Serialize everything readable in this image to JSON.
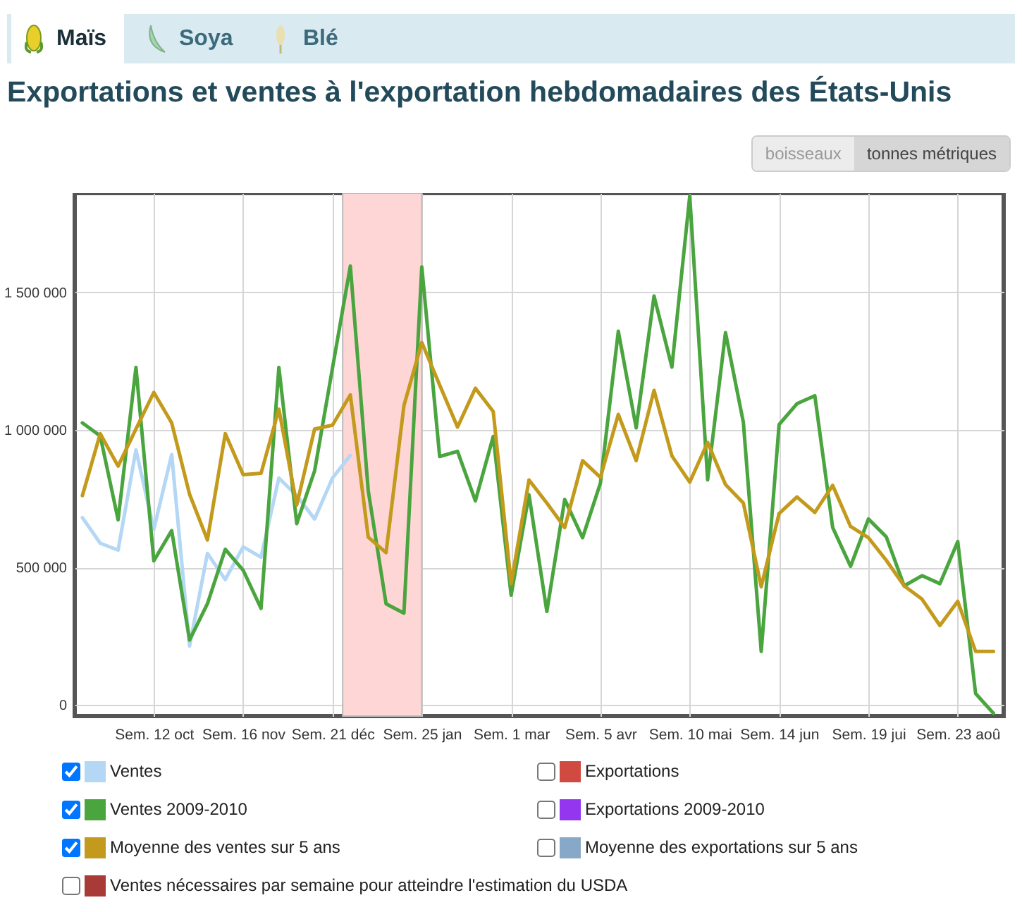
{
  "chart_data": {
    "type": "line",
    "title": "Exportations et ventes à l'exportation hebdomadaires des États-Unis",
    "annotations": [
      "Maïs",
      "Soya",
      "Blé",
      "boisseaux",
      "tonnes métriques"
    ],
    "x": [
      "2009-09-14",
      "2009-09-21",
      "2009-09-28",
      "2009-10-05",
      "2009-10-12",
      "2009-10-19",
      "2009-10-26",
      "2009-11-02",
      "2009-11-09",
      "2009-11-16",
      "2009-11-23",
      "2009-11-30",
      "2009-12-07",
      "2009-12-14",
      "2009-12-21",
      "2009-12-28",
      "2010-01-04",
      "2010-01-11",
      "2010-01-18",
      "2010-01-25",
      "2010-02-01",
      "2010-02-08",
      "2010-02-15",
      "2010-02-22",
      "2010-03-01",
      "2010-03-08",
      "2010-03-15",
      "2010-03-22",
      "2010-03-29",
      "2010-04-05",
      "2010-04-12",
      "2010-04-19",
      "2010-04-26",
      "2010-05-03",
      "2010-05-10",
      "2010-05-17",
      "2010-05-24",
      "2010-05-31",
      "2010-06-07",
      "2010-06-14",
      "2010-06-21",
      "2010-06-28",
      "2010-07-05",
      "2010-07-12",
      "2010-07-19",
      "2010-07-26",
      "2010-08-02",
      "2010-08-09",
      "2010-08-16",
      "2010-08-23",
      "2010-08-30",
      "2010-09-06"
    ],
    "xlim": [
      "2009-09-11",
      "2010-09-10"
    ],
    "xticks": [
      {
        "value": "2009-10-12",
        "label": "Sem. 12 oct"
      },
      {
        "value": "2009-11-16",
        "label": "Sem. 16 nov"
      },
      {
        "value": "2009-12-21",
        "label": "Sem. 21 déc"
      },
      {
        "value": "2010-01-25",
        "label": "Sem. 25 jan"
      },
      {
        "value": "2010-03-01",
        "label": "Sem. 1 mar"
      },
      {
        "value": "2010-04-05",
        "label": "Sem. 5 avr"
      },
      {
        "value": "2010-05-10",
        "label": "Sem. 10 mai"
      },
      {
        "value": "2010-06-14",
        "label": "Sem. 14 jun"
      },
      {
        "value": "2010-07-19",
        "label": "Sem. 19 jui"
      },
      {
        "value": "2010-08-23",
        "label": "Sem. 23 aoû"
      }
    ],
    "ylim": [
      -40000,
      1860000
    ],
    "yticks": [
      0,
      {
        "value": 500000,
        "label": "500 000"
      },
      {
        "value": 1000000,
        "label": "1 000 000"
      },
      {
        "value": 1500000,
        "label": "1 500 000"
      }
    ],
    "grid": true,
    "legend": "bottom",
    "bands": [
      {
        "axis": "x",
        "from": "2009-12-25",
        "to": "2010-01-25",
        "color": "#ffd6d6"
      }
    ],
    "series": [
      {
        "name": "Ventes",
        "color": "#b3d7f5",
        "values": [
          681000,
          588000,
          563000,
          927000,
          639000,
          910000,
          215000,
          551000,
          456000,
          575000,
          537000,
          825000,
          761000,
          676000,
          825000,
          907000,
          null,
          null,
          null,
          null,
          null,
          null,
          null,
          null,
          null,
          null,
          null,
          null,
          null,
          null,
          null,
          null,
          null,
          null,
          null,
          null,
          null,
          null,
          null,
          null,
          null,
          null,
          null,
          null,
          null,
          null,
          null,
          null,
          null,
          null,
          null,
          null
        ]
      },
      {
        "name": "Exportations",
        "color": "#d04a42",
        "values": [
          null,
          null,
          null,
          null,
          null,
          null,
          null,
          null,
          null,
          null,
          null,
          null,
          null,
          null,
          null,
          null,
          null,
          null,
          null,
          null,
          null,
          null,
          null,
          null,
          null,
          null,
          null,
          null,
          null,
          null,
          null,
          null,
          null,
          null,
          null,
          null,
          null,
          null,
          null,
          null,
          null,
          null,
          null,
          null,
          null,
          null,
          null,
          null,
          null,
          null,
          null,
          null
        ]
      },
      {
        "name": "Ventes 2009-2010",
        "color": "#4aa53f",
        "values": [
          1025000,
          978000,
          673000,
          1227000,
          524000,
          634000,
          236000,
          368000,
          566000,
          490000,
          351000,
          1227000,
          659000,
          851000,
          1224000,
          1595000,
          780000,
          368000,
          334000,
          1592000,
          903000,
          922000,
          742000,
          976000,
          399000,
          764000,
          340000,
          747000,
          608000,
          807000,
          1358000,
          1007000,
          1486000,
          1228000,
          1850000,
          818000,
          1353000,
          1027000,
          195000,
          1019000,
          1095000,
          1124000,
          645000,
          504000,
          676000,
          611000,
          433000,
          470000,
          441000,
          594000,
          42000,
          -30000
        ]
      },
      {
        "name": "Exportations 2009-2010",
        "color": "#9436f0",
        "values": [
          null,
          null,
          null,
          null,
          null,
          null,
          null,
          null,
          null,
          null,
          null,
          null,
          null,
          null,
          null,
          null,
          null,
          null,
          null,
          null,
          null,
          null,
          null,
          null,
          null,
          null,
          null,
          null,
          null,
          null,
          null,
          null,
          null,
          null,
          null,
          null,
          null,
          null,
          null,
          null,
          null,
          null,
          null,
          null,
          null,
          null,
          null,
          null,
          null,
          null,
          null,
          null
        ]
      },
      {
        "name": "Moyenne des ventes sur 5 ans",
        "color": "#c39a1b",
        "values": [
          761000,
          986000,
          868000,
          1003000,
          1136000,
          1025000,
          766000,
          600000,
          986000,
          837000,
          842000,
          1075000,
          727000,
          1003000,
          1017000,
          1127000,
          610000,
          554000,
          1088000,
          1317000,
          1163000,
          1010000,
          1151000,
          1066000,
          441000,
          818000,
          734000,
          645000,
          888000,
          827000,
          1056000,
          888000,
          1143000,
          905000,
          810000,
          954000,
          801000,
          734000,
          430000,
          696000,
          756000,
          700000,
          798000,
          649000,
          608000,
          526000,
          433000,
          385000,
          289000,
          377000,
          195000,
          195000
        ]
      },
      {
        "name": "Moyenne des exportations sur 5 ans",
        "color": "#88a8c8",
        "values": [
          null,
          null,
          null,
          null,
          null,
          null,
          null,
          null,
          null,
          null,
          null,
          null,
          null,
          null,
          null,
          null,
          null,
          null,
          null,
          null,
          null,
          null,
          null,
          null,
          null,
          null,
          null,
          null,
          null,
          null,
          null,
          null,
          null,
          null,
          null,
          null,
          null,
          null,
          null,
          null,
          null,
          null,
          null,
          null,
          null,
          null,
          null,
          null,
          null,
          null,
          null,
          null
        ]
      },
      {
        "name": "Ventes nécessaires par semaine pour atteindre l'estimation du USDA",
        "color": "#a83a38",
        "values": [
          null,
          null,
          null,
          null,
          null,
          null,
          null,
          null,
          null,
          null,
          null,
          null,
          null,
          null,
          null,
          null,
          null,
          null,
          null,
          null,
          null,
          null,
          null,
          null,
          null,
          null,
          null,
          null,
          null,
          null,
          null,
          null,
          null,
          null,
          null,
          null,
          null,
          null,
          null,
          null,
          null,
          null,
          null,
          null,
          null,
          null,
          null,
          null,
          null,
          null,
          null,
          null
        ]
      }
    ]
  }
}
